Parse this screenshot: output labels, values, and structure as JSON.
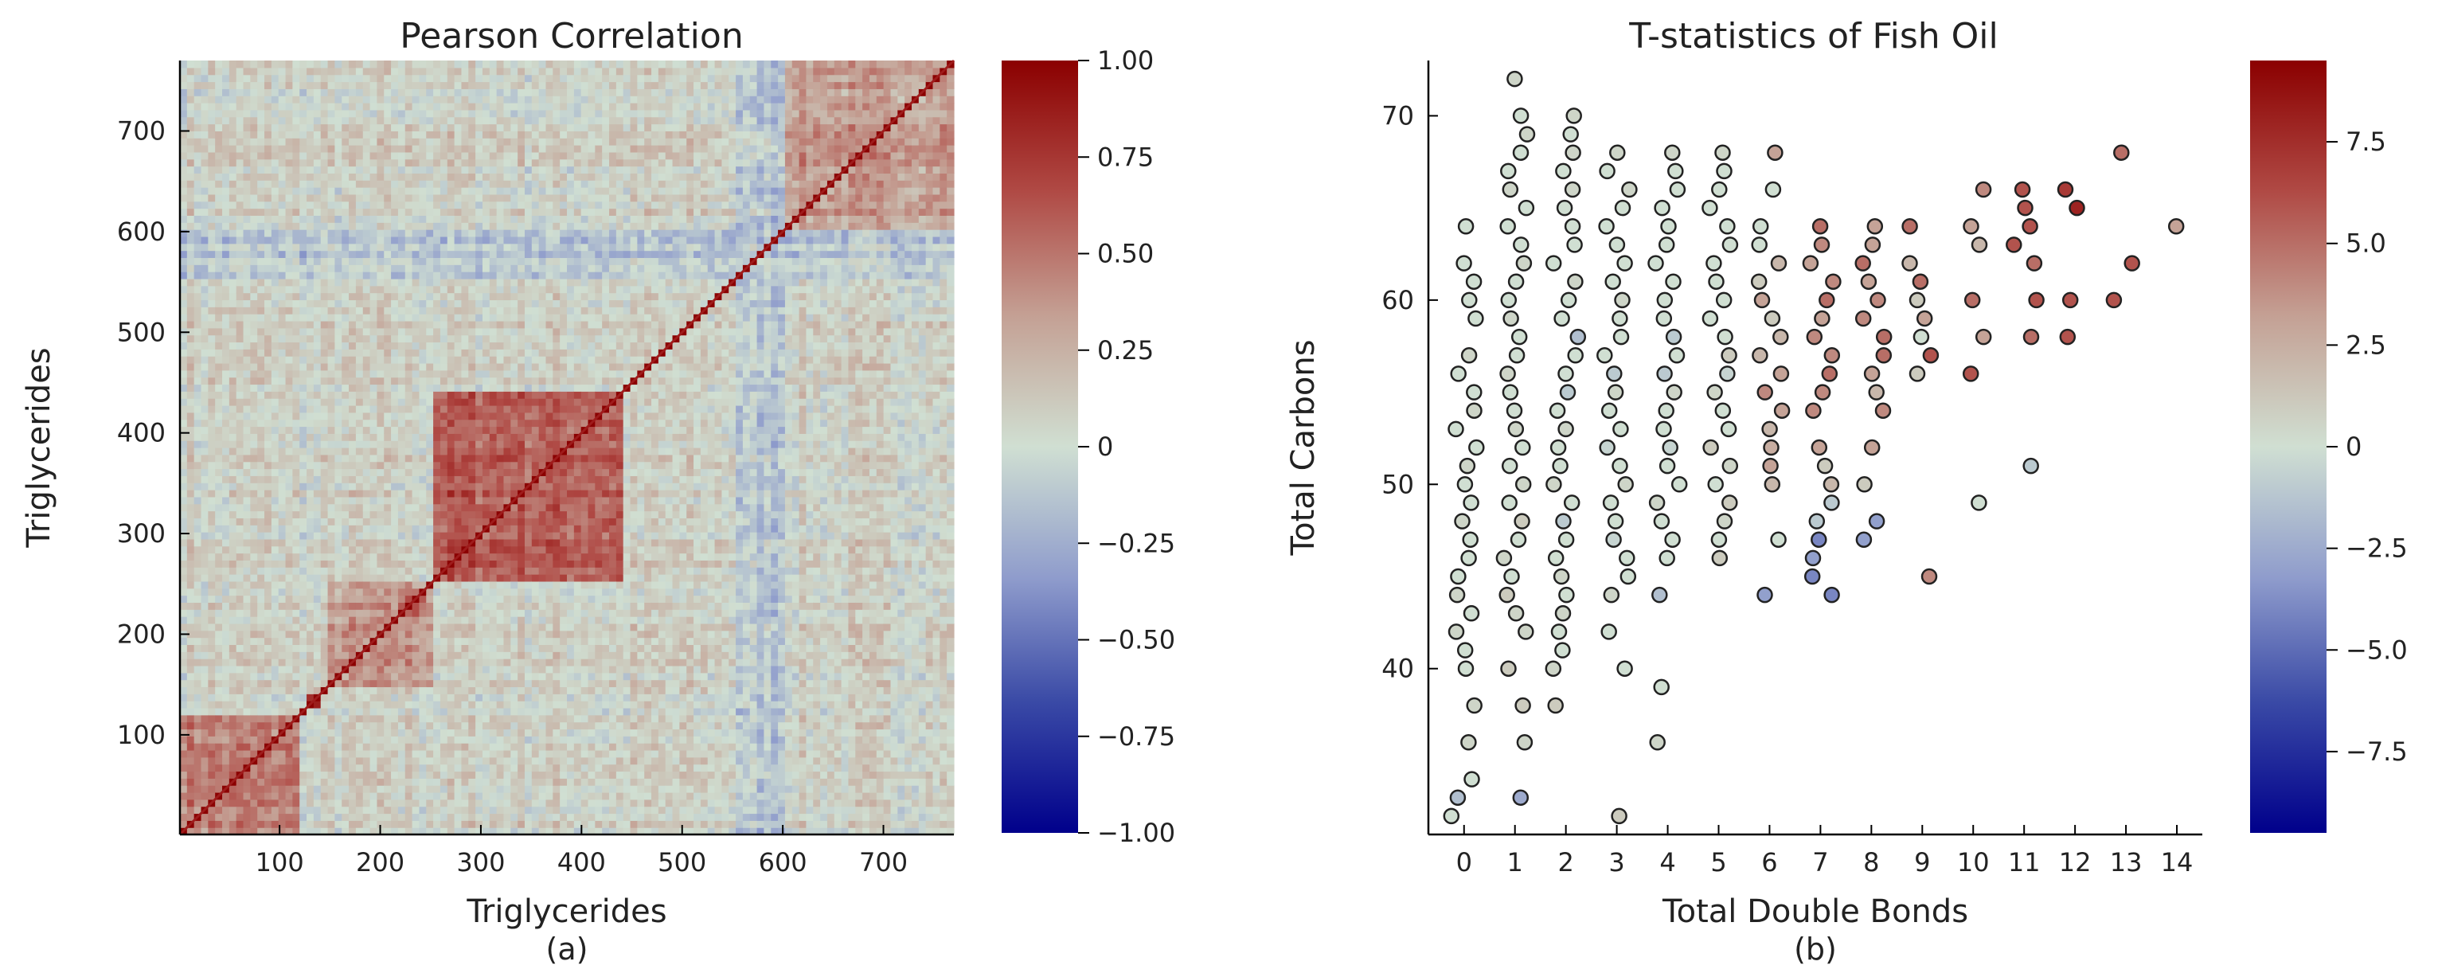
{
  "colors": {
    "colormap": [
      "#00008b",
      "#3a4aa6",
      "#8f9ccc",
      "#d0dfd2",
      "#c4a094",
      "#b04a45",
      "#8b0000"
    ],
    "neutral": "#d0dfd2",
    "axis": "#000000",
    "text": "#222222"
  },
  "chart_data": [
    {
      "type": "heatmap",
      "title": "Pearson Correlation",
      "xlabel": "Triglycerides",
      "ylabel": "Triglycerides",
      "panel_label": "(a)",
      "n": 770,
      "xlim": [
        1,
        770
      ],
      "ylim": [
        1,
        770
      ],
      "xticks": [
        100,
        200,
        300,
        400,
        500,
        600,
        700
      ],
      "yticks": [
        100,
        200,
        300,
        400,
        500,
        600,
        700
      ],
      "colorbar": {
        "range": [
          -1.0,
          1.0
        ],
        "ticks": [
          1.0,
          0.75,
          0.5,
          0.25,
          0,
          -0.25,
          -0.5,
          -0.75,
          -1.0
        ],
        "tick_labels": [
          "1.00",
          "0.75",
          "0.50",
          "0.25",
          "0",
          "−0.25",
          "−0.50",
          "−0.75",
          "−1.00"
        ]
      },
      "features": [
        {
          "description": "strong positive correlation along diagonal",
          "value": 1.0
        },
        {
          "description": "positively correlated block",
          "range": [
            250,
            440
          ],
          "value": 0.6
        },
        {
          "description": "correlated block",
          "range": [
            1,
            120
          ],
          "value": 0.45
        },
        {
          "description": "correlated block",
          "range": [
            140,
            250
          ],
          "value": 0.35
        },
        {
          "description": "correlated block",
          "range": [
            600,
            770
          ],
          "value": 0.35
        },
        {
          "description": "small strongly correlated block",
          "range": [
            125,
            140
          ],
          "value": 0.85
        },
        {
          "description": "small strongly correlated block",
          "range": [
            220,
            245
          ],
          "value": 0.6
        },
        {
          "description": "near-zero band",
          "range": [
            125,
            145
          ],
          "value": 0.02
        },
        {
          "description": "negative band",
          "range": [
            555,
            600
          ],
          "value": -0.15
        }
      ]
    },
    {
      "type": "scatter",
      "title": "T-statistics of Fish Oil",
      "xlabel": "Total Double Bonds",
      "ylabel": "Total Carbons",
      "panel_label": "(b)",
      "xlim": [
        -0.7,
        14.5
      ],
      "ylim": [
        31,
        73
      ],
      "xticks": [
        0,
        1,
        2,
        3,
        4,
        5,
        6,
        7,
        8,
        9,
        10,
        11,
        12,
        13,
        14
      ],
      "yticks": [
        40,
        50,
        60,
        70
      ],
      "colorbar": {
        "range": [
          -9.5,
          9.5
        ],
        "ticks": [
          7.5,
          5.0,
          2.5,
          0,
          -2.5,
          -5.0,
          -7.5
        ],
        "tick_labels": [
          "7.5",
          "5.0",
          "2.5",
          "0",
          "−2.5",
          "−5.0",
          "−7.5"
        ]
      },
      "points": [
        [
          0,
          32,
          0
        ],
        [
          0,
          33,
          -1.5
        ],
        [
          0,
          34,
          0
        ],
        [
          0,
          36,
          0.5
        ],
        [
          0,
          38,
          0.5
        ],
        [
          0,
          40,
          0
        ],
        [
          0,
          41,
          0
        ],
        [
          0,
          42,
          0.5
        ],
        [
          0,
          43,
          0
        ],
        [
          0,
          44,
          0.5
        ],
        [
          0,
          45,
          0
        ],
        [
          0,
          46,
          0
        ],
        [
          0,
          47,
          0
        ],
        [
          0,
          48,
          0.5
        ],
        [
          0,
          49,
          0
        ],
        [
          0,
          50,
          0
        ],
        [
          0,
          51,
          0.5
        ],
        [
          0,
          52,
          0
        ],
        [
          0,
          53,
          0
        ],
        [
          0,
          54,
          0.5
        ],
        [
          0,
          55,
          0
        ],
        [
          0,
          56,
          0
        ],
        [
          0,
          57,
          0.5
        ],
        [
          0,
          59,
          0
        ],
        [
          0,
          60,
          0
        ],
        [
          0,
          61,
          0
        ],
        [
          0,
          62,
          0
        ],
        [
          0,
          64,
          0
        ],
        [
          1,
          33,
          -2.5
        ],
        [
          1,
          36,
          0.5
        ],
        [
          1,
          38,
          1
        ],
        [
          1,
          40,
          1
        ],
        [
          1,
          42,
          0.5
        ],
        [
          1,
          43,
          0.5
        ],
        [
          1,
          44,
          1
        ],
        [
          1,
          45,
          0
        ],
        [
          1,
          46,
          0.5
        ],
        [
          1,
          47,
          0
        ],
        [
          1,
          48,
          1
        ],
        [
          1,
          49,
          0
        ],
        [
          1,
          50,
          0.5
        ],
        [
          1,
          51,
          0
        ],
        [
          1,
          52,
          0
        ],
        [
          1,
          53,
          0.5
        ],
        [
          1,
          54,
          0
        ],
        [
          1,
          55,
          0
        ],
        [
          1,
          56,
          0.5
        ],
        [
          1,
          57,
          0
        ],
        [
          1,
          58,
          0
        ],
        [
          1,
          59,
          0.5
        ],
        [
          1,
          60,
          0
        ],
        [
          1,
          61,
          0
        ],
        [
          1,
          62,
          0.5
        ],
        [
          1,
          63,
          0
        ],
        [
          1,
          64,
          0
        ],
        [
          1,
          65,
          0
        ],
        [
          1,
          66,
          0.5
        ],
        [
          1,
          67,
          0
        ],
        [
          1,
          68,
          0
        ],
        [
          1,
          69,
          0.5
        ],
        [
          1,
          70,
          0
        ],
        [
          1,
          72,
          0.5
        ],
        [
          2,
          38,
          1
        ],
        [
          2,
          40,
          0.5
        ],
        [
          2,
          41,
          0
        ],
        [
          2,
          42,
          0
        ],
        [
          2,
          43,
          0.5
        ],
        [
          2,
          44,
          0
        ],
        [
          2,
          45,
          0.5
        ],
        [
          2,
          46,
          0
        ],
        [
          2,
          47,
          0
        ],
        [
          2,
          48,
          -1
        ],
        [
          2,
          49,
          0
        ],
        [
          2,
          50,
          0.5
        ],
        [
          2,
          51,
          0
        ],
        [
          2,
          52,
          0
        ],
        [
          2,
          53,
          0.5
        ],
        [
          2,
          54,
          0
        ],
        [
          2,
          55,
          -1
        ],
        [
          2,
          56,
          0
        ],
        [
          2,
          57,
          0
        ],
        [
          2,
          58,
          -1.5
        ],
        [
          2,
          59,
          0
        ],
        [
          2,
          60,
          0
        ],
        [
          2,
          61,
          0.5
        ],
        [
          2,
          62,
          0
        ],
        [
          2,
          63,
          0
        ],
        [
          2,
          64,
          0
        ],
        [
          2,
          65,
          0
        ],
        [
          2,
          66,
          0.5
        ],
        [
          2,
          67,
          0
        ],
        [
          2,
          68,
          0.5
        ],
        [
          2,
          69,
          0
        ],
        [
          2,
          70,
          0.5
        ],
        [
          3,
          32,
          1
        ],
        [
          3,
          40,
          0
        ],
        [
          3,
          42,
          0
        ],
        [
          3,
          44,
          0.5
        ],
        [
          3,
          45,
          0
        ],
        [
          3,
          46,
          0
        ],
        [
          3,
          47,
          -0.5
        ],
        [
          3,
          48,
          0
        ],
        [
          3,
          49,
          0
        ],
        [
          3,
          50,
          0.5
        ],
        [
          3,
          51,
          0
        ],
        [
          3,
          52,
          -0.5
        ],
        [
          3,
          53,
          0
        ],
        [
          3,
          54,
          0
        ],
        [
          3,
          55,
          0.5
        ],
        [
          3,
          56,
          -1
        ],
        [
          3,
          57,
          0
        ],
        [
          3,
          58,
          0
        ],
        [
          3,
          59,
          0
        ],
        [
          3,
          60,
          0.5
        ],
        [
          3,
          61,
          0
        ],
        [
          3,
          62,
          0
        ],
        [
          3,
          63,
          0
        ],
        [
          3,
          64,
          0
        ],
        [
          3,
          65,
          0
        ],
        [
          3,
          66,
          0.5
        ],
        [
          3,
          67,
          0
        ],
        [
          3,
          68,
          0.5
        ],
        [
          4,
          36,
          0.5
        ],
        [
          4,
          39,
          0
        ],
        [
          4,
          44,
          -1.5
        ],
        [
          4,
          46,
          0
        ],
        [
          4,
          47,
          0
        ],
        [
          4,
          48,
          0
        ],
        [
          4,
          49,
          0.5
        ],
        [
          4,
          50,
          0
        ],
        [
          4,
          51,
          0
        ],
        [
          4,
          52,
          -0.5
        ],
        [
          4,
          53,
          0
        ],
        [
          4,
          54,
          0
        ],
        [
          4,
          55,
          0.5
        ],
        [
          4,
          56,
          -1
        ],
        [
          4,
          57,
          0
        ],
        [
          4,
          58,
          -1
        ],
        [
          4,
          59,
          0
        ],
        [
          4,
          60,
          0
        ],
        [
          4,
          61,
          0
        ],
        [
          4,
          62,
          0
        ],
        [
          4,
          63,
          0
        ],
        [
          4,
          64,
          0
        ],
        [
          4,
          65,
          0
        ],
        [
          4,
          66,
          0
        ],
        [
          4,
          67,
          0
        ],
        [
          4,
          68,
          0.5
        ],
        [
          5,
          46,
          1
        ],
        [
          5,
          47,
          0
        ],
        [
          5,
          48,
          0.5
        ],
        [
          5,
          49,
          1
        ],
        [
          5,
          50,
          0
        ],
        [
          5,
          51,
          0.5
        ],
        [
          5,
          52,
          1
        ],
        [
          5,
          53,
          0
        ],
        [
          5,
          54,
          0
        ],
        [
          5,
          55,
          0.5
        ],
        [
          5,
          56,
          -0.5
        ],
        [
          5,
          57,
          1
        ],
        [
          5,
          58,
          0
        ],
        [
          5,
          59,
          0
        ],
        [
          5,
          60,
          0
        ],
        [
          5,
          61,
          0
        ],
        [
          5,
          62,
          0
        ],
        [
          5,
          63,
          0
        ],
        [
          5,
          64,
          0
        ],
        [
          5,
          65,
          0
        ],
        [
          5,
          66,
          0
        ],
        [
          5,
          67,
          0
        ],
        [
          5,
          68,
          0.5
        ],
        [
          6,
          44,
          -3
        ],
        [
          6,
          47,
          0
        ],
        [
          6,
          50,
          2
        ],
        [
          6,
          51,
          3
        ],
        [
          6,
          52,
          2.5
        ],
        [
          6,
          53,
          2
        ],
        [
          6,
          54,
          3
        ],
        [
          6,
          55,
          4
        ],
        [
          6,
          56,
          3
        ],
        [
          6,
          57,
          2
        ],
        [
          6,
          58,
          2
        ],
        [
          6,
          59,
          1
        ],
        [
          6,
          60,
          3
        ],
        [
          6,
          61,
          1
        ],
        [
          6,
          62,
          2
        ],
        [
          6,
          63,
          0
        ],
        [
          6,
          64,
          0
        ],
        [
          6,
          66,
          0
        ],
        [
          6,
          68,
          3
        ],
        [
          7,
          44,
          -4
        ],
        [
          7,
          45,
          -4
        ],
        [
          7,
          46,
          -3
        ],
        [
          7,
          47,
          -4
        ],
        [
          7,
          48,
          -1
        ],
        [
          7,
          49,
          -1
        ],
        [
          7,
          50,
          2
        ],
        [
          7,
          51,
          1
        ],
        [
          7,
          52,
          3
        ],
        [
          7,
          54,
          4
        ],
        [
          7,
          55,
          4
        ],
        [
          7,
          56,
          5
        ],
        [
          7,
          57,
          4
        ],
        [
          7,
          58,
          4
        ],
        [
          7,
          59,
          3
        ],
        [
          7,
          60,
          5
        ],
        [
          7,
          61,
          4
        ],
        [
          7,
          62,
          3
        ],
        [
          7,
          63,
          4
        ],
        [
          7,
          64,
          5
        ],
        [
          8,
          47,
          -3
        ],
        [
          8,
          48,
          -3
        ],
        [
          8,
          50,
          1
        ],
        [
          8,
          52,
          3
        ],
        [
          8,
          54,
          4
        ],
        [
          8,
          55,
          2
        ],
        [
          8,
          56,
          3
        ],
        [
          8,
          57,
          5
        ],
        [
          8,
          58,
          5
        ],
        [
          8,
          59,
          4
        ],
        [
          8,
          60,
          4
        ],
        [
          8,
          61,
          3
        ],
        [
          8,
          62,
          5
        ],
        [
          8,
          63,
          3
        ],
        [
          8,
          64,
          3
        ],
        [
          9,
          45,
          4
        ],
        [
          9,
          56,
          1
        ],
        [
          9,
          57,
          6
        ],
        [
          9,
          58,
          0
        ],
        [
          9,
          59,
          3
        ],
        [
          9,
          60,
          1
        ],
        [
          9,
          61,
          5
        ],
        [
          9,
          62,
          2
        ],
        [
          9,
          64,
          5
        ],
        [
          10,
          49,
          0
        ],
        [
          10,
          56,
          6
        ],
        [
          10,
          58,
          3
        ],
        [
          10,
          60,
          5
        ],
        [
          10,
          63,
          2
        ],
        [
          10,
          64,
          3
        ],
        [
          10,
          66,
          4
        ],
        [
          11,
          51,
          -1
        ],
        [
          11,
          58,
          5
        ],
        [
          11,
          60,
          6
        ],
        [
          11,
          62,
          5
        ],
        [
          11,
          63,
          6
        ],
        [
          11,
          64,
          6
        ],
        [
          11,
          65,
          6
        ],
        [
          11,
          66,
          6
        ],
        [
          12,
          58,
          6
        ],
        [
          12,
          60,
          6
        ],
        [
          12,
          65,
          8
        ],
        [
          12,
          66,
          7
        ],
        [
          13,
          60,
          6
        ],
        [
          13,
          62,
          6
        ],
        [
          13,
          68,
          5
        ],
        [
          14,
          64,
          3
        ]
      ]
    }
  ]
}
